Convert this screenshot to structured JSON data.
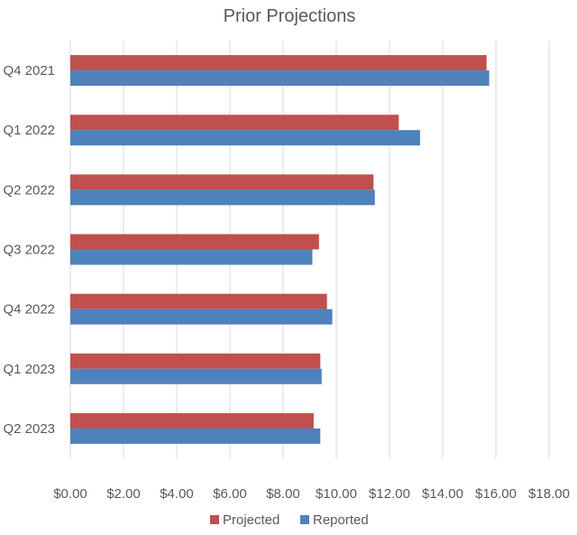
{
  "chart_data": {
    "type": "bar",
    "orientation": "horizontal",
    "title": "Prior Projections",
    "categories": [
      "Q4 2021",
      "Q1 2022",
      "Q2 2022",
      "Q3 2022",
      "Q4 2022",
      "Q1 2023",
      "Q2 2023"
    ],
    "series": [
      {
        "name": "Projected",
        "color": "#c0504d",
        "values": [
          15.65,
          12.35,
          11.4,
          9.35,
          9.65,
          9.4,
          9.15
        ]
      },
      {
        "name": "Reported",
        "color": "#4f81bd",
        "values": [
          15.75,
          13.15,
          11.45,
          9.1,
          9.85,
          9.45,
          9.4
        ]
      }
    ],
    "x_ticks": [
      "$0.00",
      "$2.00",
      "$4.00",
      "$6.00",
      "$8.00",
      "$10.00",
      "$12.00",
      "$14.00",
      "$16.00",
      "$18.00"
    ],
    "xlim": [
      0,
      18
    ],
    "xlabel": "",
    "ylabel": "",
    "grid": "vertical",
    "legend_position": "bottom"
  }
}
